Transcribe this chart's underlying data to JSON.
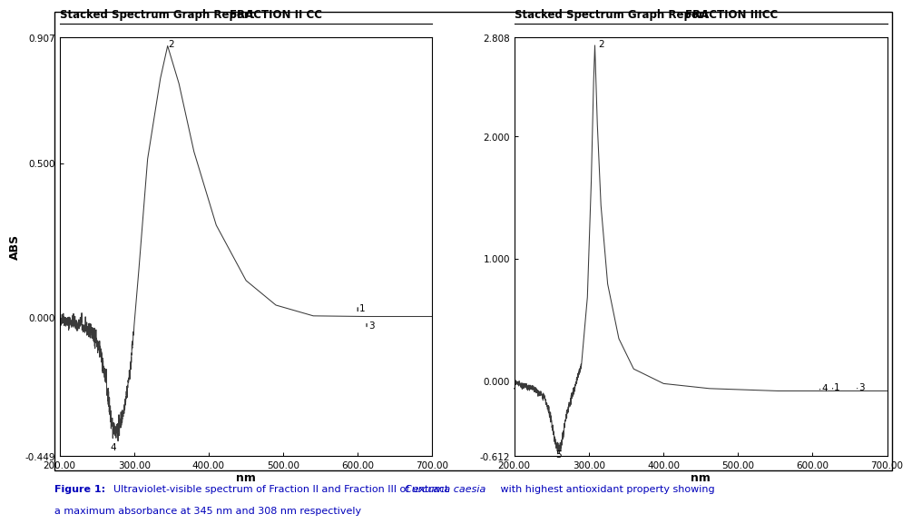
{
  "title1": "Stacked Spectrum Graph Report",
  "fraction1": "FRACTION II CC",
  "title2": "Stacked Spectrum Graph Report",
  "fraction2": "FRACTION IIICC",
  "xlabel": "nm",
  "ylabel": "ABS",
  "plot1": {
    "ylim": [
      -0.449,
      0.907
    ],
    "xlim": [
      200,
      700
    ],
    "yticks": [
      -0.449,
      0.0,
      0.5,
      0.907
    ],
    "ytick_labels": [
      "-0.449",
      "0.000",
      "0.500",
      "0.907"
    ],
    "xticks": [
      200.0,
      300.0,
      400.0,
      500.0,
      600.0,
      700.0
    ],
    "xtick_labels": [
      "200.00",
      "300.00",
      "400.00",
      "500.00",
      "600.00",
      "700.00"
    ]
  },
  "plot2": {
    "ylim": [
      -0.612,
      2.808
    ],
    "xlim": [
      200,
      700
    ],
    "yticks": [
      -0.612,
      0.0,
      1.0,
      2.0,
      2.808
    ],
    "ytick_labels": [
      "-0.612",
      "0.000",
      "1.000",
      "2.000",
      "2.808"
    ],
    "xticks": [
      200.0,
      300.0,
      400.0,
      500.0,
      600.0,
      700.0
    ],
    "xtick_labels": [
      "200.00",
      "300.00",
      "400.00",
      "500.00",
      "600.00",
      "700.00"
    ]
  },
  "line_color": "#3a3a3a",
  "background": "#ffffff",
  "caption_color": "#0000bb"
}
